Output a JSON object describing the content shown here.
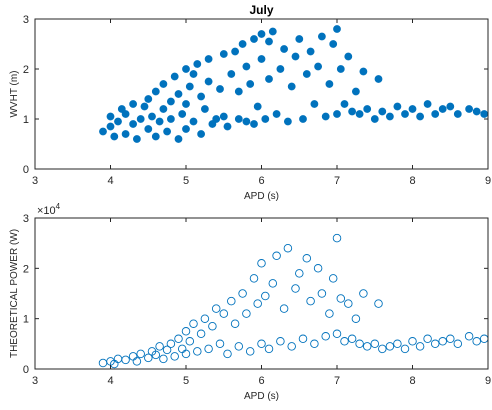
{
  "chart_data": [
    {
      "type": "scatter",
      "title": "July",
      "xlabel": "APD (s)",
      "ylabel": "WVHT (m)",
      "xlim": [
        3,
        9
      ],
      "ylim": [
        0,
        3
      ],
      "xticks": [
        "3",
        "4",
        "5",
        "6",
        "7",
        "8",
        "9"
      ],
      "yticks": [
        "0",
        "1",
        "2",
        "3"
      ],
      "marker": "filled-circle",
      "color": "#0072BD",
      "grid": false,
      "points": [
        [
          3.9,
          0.75
        ],
        [
          4.0,
          0.85
        ],
        [
          4.0,
          1.05
        ],
        [
          4.05,
          0.65
        ],
        [
          4.1,
          0.95
        ],
        [
          4.15,
          1.2
        ],
        [
          4.2,
          0.7
        ],
        [
          4.2,
          1.1
        ],
        [
          4.3,
          0.9
        ],
        [
          4.3,
          1.3
        ],
        [
          4.35,
          0.6
        ],
        [
          4.4,
          1.0
        ],
        [
          4.45,
          1.25
        ],
        [
          4.5,
          0.8
        ],
        [
          4.5,
          1.4
        ],
        [
          4.55,
          1.05
        ],
        [
          4.6,
          0.65
        ],
        [
          4.6,
          1.55
        ],
        [
          4.65,
          0.95
        ],
        [
          4.7,
          1.2
        ],
        [
          4.7,
          1.7
        ],
        [
          4.75,
          0.75
        ],
        [
          4.8,
          1.35
        ],
        [
          4.8,
          1.0
        ],
        [
          4.85,
          1.85
        ],
        [
          4.9,
          0.6
        ],
        [
          4.9,
          1.5
        ],
        [
          4.95,
          1.1
        ],
        [
          5.0,
          2.0
        ],
        [
          5.0,
          0.8
        ],
        [
          5.0,
          1.3
        ],
        [
          5.05,
          1.65
        ],
        [
          5.1,
          0.95
        ],
        [
          5.1,
          1.9
        ],
        [
          5.15,
          2.1
        ],
        [
          5.2,
          0.7
        ],
        [
          5.2,
          1.45
        ],
        [
          5.25,
          1.2
        ],
        [
          5.3,
          1.75
        ],
        [
          5.3,
          2.2
        ],
        [
          5.35,
          0.9
        ],
        [
          5.4,
          1.0
        ],
        [
          5.45,
          1.6
        ],
        [
          5.5,
          1.05
        ],
        [
          5.5,
          2.3
        ],
        [
          5.55,
          0.85
        ],
        [
          5.6,
          1.9
        ],
        [
          5.65,
          2.35
        ],
        [
          5.7,
          1.0
        ],
        [
          5.7,
          1.55
        ],
        [
          5.75,
          2.5
        ],
        [
          5.8,
          0.95
        ],
        [
          5.8,
          2.05
        ],
        [
          5.85,
          1.7
        ],
        [
          5.9,
          2.6
        ],
        [
          5.9,
          0.9
        ],
        [
          5.95,
          1.25
        ],
        [
          6.0,
          2.2
        ],
        [
          6.0,
          2.7
        ],
        [
          6.05,
          1.0
        ],
        [
          6.1,
          1.8
        ],
        [
          6.1,
          2.55
        ],
        [
          6.15,
          2.75
        ],
        [
          6.2,
          1.1
        ],
        [
          6.25,
          2.0
        ],
        [
          6.3,
          2.4
        ],
        [
          6.35,
          0.95
        ],
        [
          6.4,
          1.65
        ],
        [
          6.45,
          2.25
        ],
        [
          6.5,
          2.6
        ],
        [
          6.55,
          1.0
        ],
        [
          6.6,
          1.9
        ],
        [
          6.65,
          2.35
        ],
        [
          6.7,
          1.3
        ],
        [
          6.75,
          2.05
        ],
        [
          6.8,
          2.65
        ],
        [
          6.85,
          1.05
        ],
        [
          6.9,
          1.7
        ],
        [
          6.95,
          2.5
        ],
        [
          7.0,
          2.8
        ],
        [
          7.0,
          1.1
        ],
        [
          7.05,
          2.0
        ],
        [
          7.1,
          1.3
        ],
        [
          7.15,
          2.25
        ],
        [
          7.2,
          1.15
        ],
        [
          7.25,
          1.55
        ],
        [
          7.3,
          1.1
        ],
        [
          7.35,
          1.95
        ],
        [
          7.4,
          1.2
        ],
        [
          7.5,
          1.0
        ],
        [
          7.55,
          1.8
        ],
        [
          7.6,
          1.15
        ],
        [
          7.7,
          1.05
        ],
        [
          7.8,
          1.25
        ],
        [
          7.9,
          1.1
        ],
        [
          8.0,
          1.2
        ],
        [
          8.1,
          1.05
        ],
        [
          8.2,
          1.3
        ],
        [
          8.3,
          1.1
        ],
        [
          8.4,
          1.2
        ],
        [
          8.5,
          1.25
        ],
        [
          8.6,
          1.1
        ],
        [
          8.75,
          1.2
        ],
        [
          8.85,
          1.15
        ],
        [
          8.95,
          1.1
        ]
      ]
    },
    {
      "type": "scatter",
      "title": "",
      "xlabel": "APD (s)",
      "ylabel": "THEORETICAL POWER (W)",
      "exponent_label": "×10^4",
      "exponent_base": "×10",
      "exponent_power": "4",
      "xlim": [
        3,
        9
      ],
      "ylim": [
        0,
        3
      ],
      "xticks": [
        "3",
        "4",
        "5",
        "6",
        "7",
        "8",
        "9"
      ],
      "yticks": [
        "0",
        "1",
        "2",
        "3"
      ],
      "marker": "open-circle",
      "color": "#0072BD",
      "grid": false,
      "points": [
        [
          3.9,
          0.12
        ],
        [
          4.0,
          0.15
        ],
        [
          4.05,
          0.1
        ],
        [
          4.1,
          0.2
        ],
        [
          4.2,
          0.18
        ],
        [
          4.3,
          0.25
        ],
        [
          4.35,
          0.15
        ],
        [
          4.4,
          0.3
        ],
        [
          4.5,
          0.22
        ],
        [
          4.55,
          0.35
        ],
        [
          4.6,
          0.28
        ],
        [
          4.65,
          0.45
        ],
        [
          4.7,
          0.2
        ],
        [
          4.75,
          0.38
        ],
        [
          4.8,
          0.5
        ],
        [
          4.85,
          0.25
        ],
        [
          4.9,
          0.6
        ],
        [
          4.95,
          0.4
        ],
        [
          5.0,
          0.3
        ],
        [
          5.0,
          0.75
        ],
        [
          5.05,
          0.55
        ],
        [
          5.1,
          0.9
        ],
        [
          5.15,
          0.35
        ],
        [
          5.2,
          0.7
        ],
        [
          5.25,
          1.0
        ],
        [
          5.3,
          0.4
        ],
        [
          5.35,
          0.85
        ],
        [
          5.4,
          1.2
        ],
        [
          5.45,
          0.5
        ],
        [
          5.5,
          1.1
        ],
        [
          5.55,
          0.3
        ],
        [
          5.6,
          1.35
        ],
        [
          5.65,
          0.9
        ],
        [
          5.7,
          0.45
        ],
        [
          5.75,
          1.5
        ],
        [
          5.8,
          1.1
        ],
        [
          5.85,
          0.35
        ],
        [
          5.9,
          1.8
        ],
        [
          5.95,
          1.3
        ],
        [
          6.0,
          0.5
        ],
        [
          6.0,
          2.1
        ],
        [
          6.05,
          1.45
        ],
        [
          6.1,
          0.4
        ],
        [
          6.15,
          1.7
        ],
        [
          6.2,
          2.25
        ],
        [
          6.25,
          0.55
        ],
        [
          6.3,
          1.2
        ],
        [
          6.35,
          2.4
        ],
        [
          6.4,
          0.45
        ],
        [
          6.45,
          1.6
        ],
        [
          6.5,
          1.9
        ],
        [
          6.55,
          0.6
        ],
        [
          6.6,
          2.2
        ],
        [
          6.65,
          1.35
        ],
        [
          6.7,
          0.5
        ],
        [
          6.75,
          2.0
        ],
        [
          6.8,
          1.5
        ],
        [
          6.85,
          0.65
        ],
        [
          6.9,
          1.1
        ],
        [
          6.95,
          1.8
        ],
        [
          7.0,
          2.6
        ],
        [
          7.0,
          0.7
        ],
        [
          7.05,
          1.4
        ],
        [
          7.1,
          0.55
        ],
        [
          7.15,
          1.3
        ],
        [
          7.2,
          0.6
        ],
        [
          7.25,
          1.0
        ],
        [
          7.3,
          0.5
        ],
        [
          7.35,
          1.5
        ],
        [
          7.4,
          0.45
        ],
        [
          7.5,
          0.5
        ],
        [
          7.55,
          1.3
        ],
        [
          7.6,
          0.4
        ],
        [
          7.7,
          0.45
        ],
        [
          7.8,
          0.5
        ],
        [
          7.9,
          0.4
        ],
        [
          8.0,
          0.55
        ],
        [
          8.1,
          0.45
        ],
        [
          8.2,
          0.6
        ],
        [
          8.3,
          0.5
        ],
        [
          8.4,
          0.55
        ],
        [
          8.5,
          0.6
        ],
        [
          8.6,
          0.5
        ],
        [
          8.75,
          0.65
        ],
        [
          8.85,
          0.55
        ],
        [
          8.95,
          0.6
        ]
      ]
    }
  ]
}
